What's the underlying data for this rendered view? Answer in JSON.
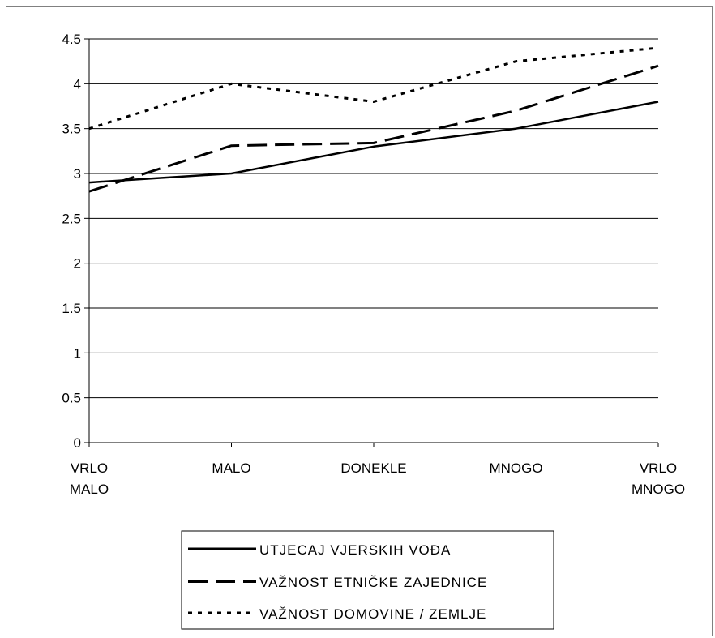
{
  "chart_data": {
    "type": "line",
    "categories": [
      [
        "VRLO",
        "MALO"
      ],
      [
        "MALO"
      ],
      [
        "DONEKLE"
      ],
      [
        "MNOGO"
      ],
      [
        "VRLO",
        "MNOGO"
      ]
    ],
    "y_ticks": [
      "0",
      "0.5",
      "1",
      "1.5",
      "2",
      "2.5",
      "3",
      "3.5",
      "4",
      "4.5"
    ],
    "ylim": [
      0,
      4.5
    ],
    "grid": true,
    "legend_position": "bottom",
    "series": [
      {
        "name": "UTJECAJ VJERSKIH VOĐA",
        "values": [
          2.9,
          3.0,
          3.3,
          3.5,
          3.8
        ],
        "dash": "solid",
        "color": "#000000"
      },
      {
        "name": "VAŽNOST ETNIČKE ZAJEDNICE",
        "values": [
          2.8,
          3.31,
          3.34,
          3.7,
          4.2
        ],
        "dash": "long-dash",
        "color": "#000000"
      },
      {
        "name": "VAŽNOST DOMOVINE / ZEMLJE",
        "values": [
          3.5,
          4.0,
          3.8,
          4.25,
          4.4
        ],
        "dash": "dotted",
        "color": "#000000"
      }
    ]
  }
}
